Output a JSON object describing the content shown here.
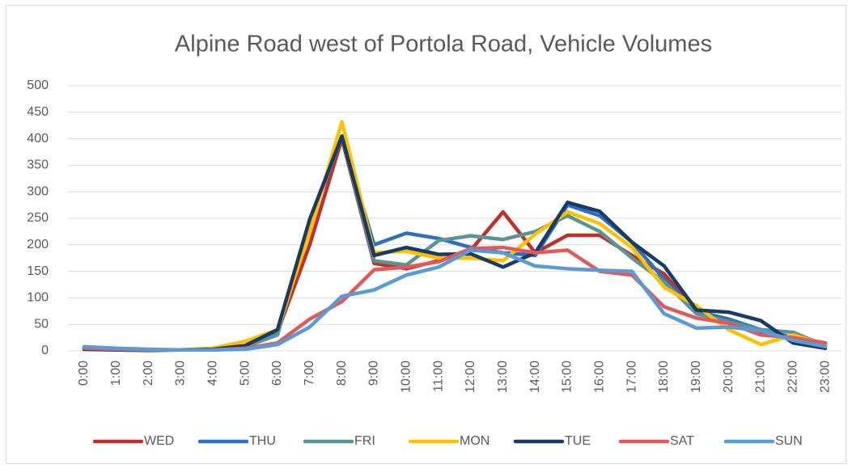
{
  "chart_data": {
    "type": "line",
    "title": "Alpine Road west of Portola Road, Vehicle Volumes",
    "categories": [
      "0:00",
      "1:00",
      "2:00",
      "3:00",
      "4:00",
      "5:00",
      "6:00",
      "7:00",
      "8:00",
      "9:00",
      "10:00",
      "11:00",
      "12:00",
      "13:00",
      "14:00",
      "15:00",
      "16:00",
      "17:00",
      "18:00",
      "19:00",
      "20:00",
      "21:00",
      "22:00",
      "23:00"
    ],
    "series": [
      {
        "name": "WED",
        "color": "#c0302b",
        "values": [
          5,
          3,
          2,
          2,
          2,
          8,
          35,
          200,
          400,
          165,
          155,
          170,
          190,
          262,
          185,
          218,
          218,
          180,
          145,
          75,
          55,
          35,
          25,
          15
        ]
      },
      {
        "name": "THU",
        "color": "#2e6fc0",
        "values": [
          5,
          3,
          2,
          2,
          3,
          8,
          35,
          245,
          405,
          200,
          222,
          212,
          195,
          185,
          180,
          275,
          255,
          205,
          135,
          75,
          60,
          40,
          25,
          10
        ]
      },
      {
        "name": "FRI",
        "color": "#5a9594",
        "values": [
          6,
          3,
          2,
          2,
          3,
          8,
          30,
          240,
          405,
          170,
          162,
          208,
          217,
          210,
          225,
          255,
          225,
          175,
          130,
          70,
          55,
          40,
          35,
          10
        ]
      },
      {
        "name": "MON",
        "color": "#ffc000",
        "values": [
          5,
          3,
          2,
          2,
          5,
          18,
          40,
          225,
          432,
          185,
          188,
          175,
          175,
          170,
          220,
          262,
          240,
          195,
          120,
          85,
          40,
          12,
          30,
          12
        ]
      },
      {
        "name": "TUE",
        "color": "#1a3b64",
        "values": [
          3,
          2,
          1,
          2,
          3,
          10,
          40,
          248,
          405,
          180,
          195,
          182,
          183,
          158,
          185,
          280,
          263,
          205,
          160,
          77,
          73,
          57,
          15,
          5
        ]
      },
      {
        "name": "SAT",
        "color": "#e05a5a",
        "values": [
          5,
          3,
          2,
          2,
          2,
          5,
          15,
          60,
          93,
          153,
          158,
          168,
          193,
          195,
          185,
          190,
          150,
          143,
          83,
          62,
          52,
          30,
          25,
          15
        ]
      },
      {
        "name": "SUN",
        "color": "#5b9bd5",
        "values": [
          8,
          5,
          3,
          2,
          2,
          3,
          12,
          45,
          103,
          115,
          143,
          158,
          190,
          185,
          160,
          155,
          152,
          150,
          70,
          43,
          45,
          38,
          20,
          8
        ]
      }
    ],
    "ylim": [
      0,
      500
    ],
    "yticks": [
      0,
      50,
      100,
      150,
      200,
      250,
      300,
      350,
      400,
      450,
      500
    ],
    "grid": true
  }
}
